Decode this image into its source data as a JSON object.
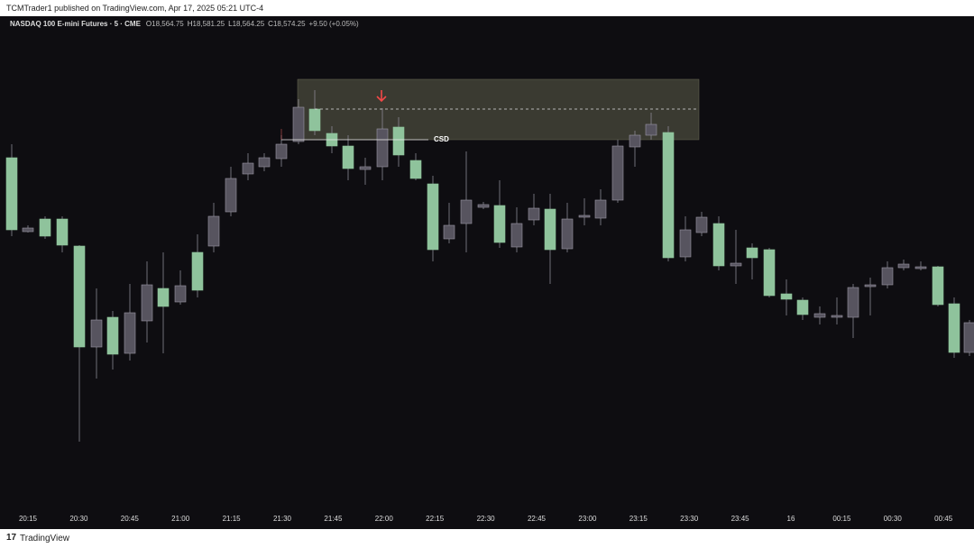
{
  "header": {
    "published": "TCMTrader1 published on TradingView.com, Apr 17, 2025 05:21 UTC-4"
  },
  "legend": {
    "symbol": "NASDAQ 100 E-mini Futures · 5 · CME",
    "ohlc": [
      {
        "key": "O",
        "value": "18,564.75"
      },
      {
        "key": "H",
        "value": "18,581.25"
      },
      {
        "key": "L",
        "value": "18,564.25"
      },
      {
        "key": "C",
        "value": "18,574.25"
      }
    ],
    "change": "+9.50 (+0.05%)"
  },
  "annotation": {
    "label": "CSD"
  },
  "time_axis": [
    "20:15",
    "20:30",
    "20:45",
    "21:00",
    "21:15",
    "21:30",
    "21:45",
    "22:00",
    "22:15",
    "22:30",
    "22:45",
    "23:00",
    "23:15",
    "23:30",
    "23:45",
    "16",
    "00:15",
    "00:30",
    "00:45"
  ],
  "footer": {
    "brand": "TradingView"
  }
}
